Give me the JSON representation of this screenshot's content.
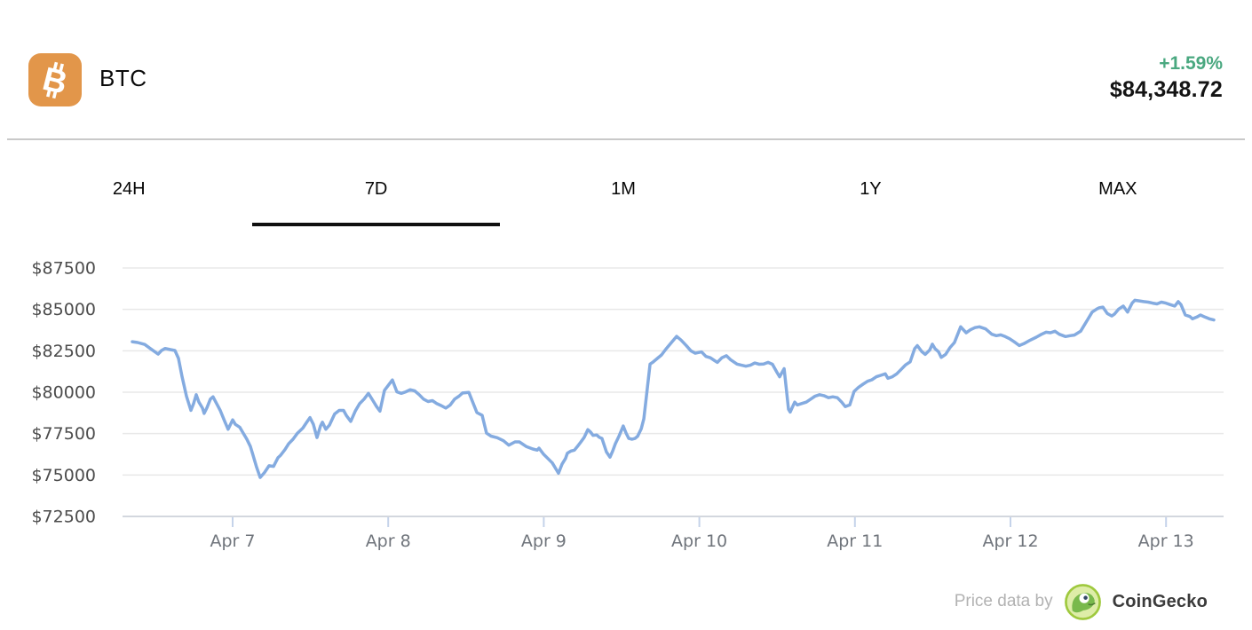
{
  "header": {
    "coin_symbol": "BTC",
    "change_percent": "+1.59%",
    "price": "$84,348.72",
    "icon": "bitcoin-icon",
    "icon_bg_color": "#E2964A",
    "positive_color": "#4AA880"
  },
  "tabs": {
    "items": [
      {
        "label": "24H",
        "active": false
      },
      {
        "label": "7D",
        "active": true
      },
      {
        "label": "1M",
        "active": false
      },
      {
        "label": "1Y",
        "active": false
      },
      {
        "label": "MAX",
        "active": false
      }
    ]
  },
  "attribution": {
    "prefix": "Price data by",
    "brand": "CoinGecko",
    "icon": "coingecko-logo"
  },
  "chart_data": {
    "type": "line",
    "series_name": "BTC price (USD), 7 days",
    "line_color": "#84ABE0",
    "grid_color": "#e8e8e8",
    "axis_bottom_color": "#d3d7de",
    "tick_color": "#c5d3ea",
    "grid_on": true,
    "ylim": [
      72500,
      87500
    ],
    "y_ticks": [
      87500,
      85000,
      82500,
      80000,
      77500,
      75000,
      72500
    ],
    "y_tick_labels": [
      "$87500",
      "$85000",
      "$82500",
      "$80000",
      "$77500",
      "$75000",
      "$72500"
    ],
    "x_ticks": [
      7,
      8,
      9,
      10,
      11,
      12,
      13
    ],
    "x_tick_labels": [
      "Apr 7",
      "Apr 8",
      "Apr 9",
      "Apr 10",
      "Apr 11",
      "Apr 12",
      "Apr 13"
    ],
    "x_unit": "date in April (decimal days)",
    "x_range": [
      6.355,
      13.307
    ],
    "points": [
      [
        6.355,
        83050
      ],
      [
        6.389,
        83000
      ],
      [
        6.435,
        82880
      ],
      [
        6.475,
        82610
      ],
      [
        6.521,
        82300
      ],
      [
        6.543,
        82520
      ],
      [
        6.566,
        82640
      ],
      [
        6.6,
        82570
      ],
      [
        6.629,
        82520
      ],
      [
        6.652,
        82040
      ],
      [
        6.675,
        80920
      ],
      [
        6.703,
        79760
      ],
      [
        6.732,
        78900
      ],
      [
        6.749,
        79310
      ],
      [
        6.766,
        79850
      ],
      [
        6.783,
        79400
      ],
      [
        6.806,
        79040
      ],
      [
        6.817,
        78720
      ],
      [
        6.834,
        79040
      ],
      [
        6.857,
        79580
      ],
      [
        6.874,
        79720
      ],
      [
        6.897,
        79310
      ],
      [
        6.92,
        78900
      ],
      [
        6.949,
        78240
      ],
      [
        6.971,
        77760
      ],
      [
        7.0,
        78330
      ],
      [
        7.017,
        78060
      ],
      [
        7.046,
        77880
      ],
      [
        7.068,
        77530
      ],
      [
        7.091,
        77170
      ],
      [
        7.114,
        76720
      ],
      [
        7.131,
        76190
      ],
      [
        7.154,
        75470
      ],
      [
        7.177,
        74850
      ],
      [
        7.205,
        75150
      ],
      [
        7.234,
        75560
      ],
      [
        7.263,
        75520
      ],
      [
        7.291,
        76040
      ],
      [
        7.308,
        76190
      ],
      [
        7.337,
        76540
      ],
      [
        7.36,
        76890
      ],
      [
        7.388,
        77160
      ],
      [
        7.417,
        77530
      ],
      [
        7.451,
        77830
      ],
      [
        7.474,
        78150
      ],
      [
        7.497,
        78470
      ],
      [
        7.519,
        78060
      ],
      [
        7.542,
        77260
      ],
      [
        7.565,
        77970
      ],
      [
        7.577,
        78190
      ],
      [
        7.599,
        77760
      ],
      [
        7.622,
        78010
      ],
      [
        7.656,
        78690
      ],
      [
        7.685,
        78900
      ],
      [
        7.713,
        78900
      ],
      [
        7.731,
        78590
      ],
      [
        7.759,
        78240
      ],
      [
        7.788,
        78860
      ],
      [
        7.816,
        79310
      ],
      [
        7.845,
        79580
      ],
      [
        7.873,
        79930
      ],
      [
        7.902,
        79490
      ],
      [
        7.925,
        79130
      ],
      [
        7.947,
        78860
      ],
      [
        7.976,
        80110
      ],
      [
        8.027,
        80740
      ],
      [
        8.056,
        80020
      ],
      [
        8.084,
        79930
      ],
      [
        8.113,
        80020
      ],
      [
        8.141,
        80150
      ],
      [
        8.17,
        80080
      ],
      [
        8.199,
        79850
      ],
      [
        8.227,
        79580
      ],
      [
        8.256,
        79440
      ],
      [
        8.284,
        79490
      ],
      [
        8.313,
        79310
      ],
      [
        8.341,
        79190
      ],
      [
        8.37,
        79040
      ],
      [
        8.398,
        79220
      ],
      [
        8.427,
        79580
      ],
      [
        8.455,
        79760
      ],
      [
        8.478,
        79950
      ],
      [
        8.518,
        79990
      ],
      [
        8.57,
        78770
      ],
      [
        8.604,
        78600
      ],
      [
        8.632,
        77530
      ],
      [
        8.661,
        77350
      ],
      [
        8.701,
        77250
      ],
      [
        8.741,
        77070
      ],
      [
        8.775,
        76800
      ],
      [
        8.815,
        77000
      ],
      [
        8.843,
        77000
      ],
      [
        8.889,
        76710
      ],
      [
        8.929,
        76570
      ],
      [
        8.958,
        76500
      ],
      [
        8.969,
        76620
      ],
      [
        8.997,
        76270
      ],
      [
        9.026,
        76000
      ],
      [
        9.055,
        75730
      ],
      [
        9.083,
        75290
      ],
      [
        9.095,
        75110
      ],
      [
        9.117,
        75650
      ],
      [
        9.14,
        76000
      ],
      [
        9.152,
        76320
      ],
      [
        9.175,
        76450
      ],
      [
        9.197,
        76500
      ],
      [
        9.215,
        76710
      ],
      [
        9.237,
        76980
      ],
      [
        9.26,
        77280
      ],
      [
        9.283,
        77740
      ],
      [
        9.3,
        77600
      ],
      [
        9.317,
        77390
      ],
      [
        9.34,
        77420
      ],
      [
        9.357,
        77280
      ],
      [
        9.374,
        77210
      ],
      [
        9.403,
        76390
      ],
      [
        9.426,
        76080
      ],
      [
        9.443,
        76450
      ],
      [
        9.46,
        76890
      ],
      [
        9.483,
        77330
      ],
      [
        9.511,
        77960
      ],
      [
        9.529,
        77530
      ],
      [
        9.546,
        77210
      ],
      [
        9.568,
        77160
      ],
      [
        9.586,
        77210
      ],
      [
        9.603,
        77330
      ],
      [
        9.626,
        77780
      ],
      [
        9.643,
        78400
      ],
      [
        9.66,
        79760
      ],
      [
        9.683,
        81700
      ],
      [
        9.7,
        81800
      ],
      [
        9.757,
        82250
      ],
      [
        9.785,
        82600
      ],
      [
        9.825,
        83050
      ],
      [
        9.854,
        83370
      ],
      [
        9.882,
        83150
      ],
      [
        9.917,
        82800
      ],
      [
        9.945,
        82500
      ],
      [
        9.974,
        82350
      ],
      [
        10.014,
        82430
      ],
      [
        10.042,
        82160
      ],
      [
        10.071,
        82080
      ],
      [
        10.099,
        81900
      ],
      [
        10.116,
        81800
      ],
      [
        10.145,
        82080
      ],
      [
        10.174,
        82200
      ],
      [
        10.202,
        81950
      ],
      [
        10.242,
        81700
      ],
      [
        10.271,
        81630
      ],
      [
        10.299,
        81570
      ],
      [
        10.328,
        81630
      ],
      [
        10.356,
        81760
      ],
      [
        10.385,
        81690
      ],
      [
        10.413,
        81700
      ],
      [
        10.442,
        81800
      ],
      [
        10.47,
        81690
      ],
      [
        10.499,
        81200
      ],
      [
        10.516,
        80930
      ],
      [
        10.545,
        81420
      ],
      [
        10.573,
        78970
      ],
      [
        10.584,
        78800
      ],
      [
        10.613,
        79400
      ],
      [
        10.63,
        79230
      ],
      [
        10.659,
        79320
      ],
      [
        10.687,
        79400
      ],
      [
        10.716,
        79580
      ],
      [
        10.744,
        79760
      ],
      [
        10.773,
        79850
      ],
      [
        10.801,
        79790
      ],
      [
        10.83,
        79670
      ],
      [
        10.858,
        79720
      ],
      [
        10.887,
        79670
      ],
      [
        10.915,
        79400
      ],
      [
        10.938,
        79130
      ],
      [
        10.967,
        79230
      ],
      [
        10.995,
        80050
      ],
      [
        11.024,
        80300
      ],
      [
        11.052,
        80480
      ],
      [
        11.081,
        80660
      ],
      [
        11.109,
        80750
      ],
      [
        11.138,
        80930
      ],
      [
        11.166,
        81020
      ],
      [
        11.195,
        81110
      ],
      [
        11.212,
        80840
      ],
      [
        11.241,
        80930
      ],
      [
        11.269,
        81110
      ],
      [
        11.298,
        81380
      ],
      [
        11.326,
        81650
      ],
      [
        11.355,
        81830
      ],
      [
        11.384,
        82630
      ],
      [
        11.401,
        82810
      ],
      [
        11.429,
        82460
      ],
      [
        11.452,
        82280
      ],
      [
        11.481,
        82550
      ],
      [
        11.498,
        82900
      ],
      [
        11.515,
        82630
      ],
      [
        11.538,
        82430
      ],
      [
        11.555,
        82100
      ],
      [
        11.583,
        82280
      ],
      [
        11.612,
        82700
      ],
      [
        11.64,
        83000
      ],
      [
        11.68,
        83950
      ],
      [
        11.715,
        83590
      ],
      [
        11.743,
        83770
      ],
      [
        11.772,
        83900
      ],
      [
        11.8,
        83950
      ],
      [
        11.84,
        83820
      ],
      [
        11.88,
        83500
      ],
      [
        11.909,
        83410
      ],
      [
        11.937,
        83460
      ],
      [
        11.966,
        83360
      ],
      [
        11.994,
        83230
      ],
      [
        12.023,
        83050
      ],
      [
        12.057,
        82820
      ],
      [
        12.086,
        82930
      ],
      [
        12.126,
        83140
      ],
      [
        12.166,
        83320
      ],
      [
        12.2,
        83500
      ],
      [
        12.229,
        83620
      ],
      [
        12.257,
        83590
      ],
      [
        12.286,
        83680
      ],
      [
        12.314,
        83500
      ],
      [
        12.354,
        83360
      ],
      [
        12.383,
        83410
      ],
      [
        12.411,
        83450
      ],
      [
        12.451,
        83680
      ],
      [
        12.468,
        83950
      ],
      [
        12.497,
        84400
      ],
      [
        12.525,
        84840
      ],
      [
        12.554,
        85020
      ],
      [
        12.571,
        85100
      ],
      [
        12.594,
        85140
      ],
      [
        12.622,
        84750
      ],
      [
        12.651,
        84600
      ],
      [
        12.668,
        84710
      ],
      [
        12.696,
        85020
      ],
      [
        12.725,
        85200
      ],
      [
        12.753,
        84840
      ],
      [
        12.782,
        85380
      ],
      [
        12.799,
        85550
      ],
      [
        12.828,
        85510
      ],
      [
        12.856,
        85470
      ],
      [
        12.885,
        85440
      ],
      [
        12.913,
        85380
      ],
      [
        12.942,
        85330
      ],
      [
        12.97,
        85440
      ],
      [
        12.999,
        85380
      ],
      [
        13.027,
        85290
      ],
      [
        13.056,
        85200
      ],
      [
        13.078,
        85470
      ],
      [
        13.096,
        85290
      ],
      [
        13.124,
        84660
      ],
      [
        13.153,
        84570
      ],
      [
        13.17,
        84430
      ],
      [
        13.198,
        84540
      ],
      [
        13.221,
        84660
      ],
      [
        13.25,
        84540
      ],
      [
        13.278,
        84430
      ],
      [
        13.307,
        84360
      ]
    ]
  }
}
